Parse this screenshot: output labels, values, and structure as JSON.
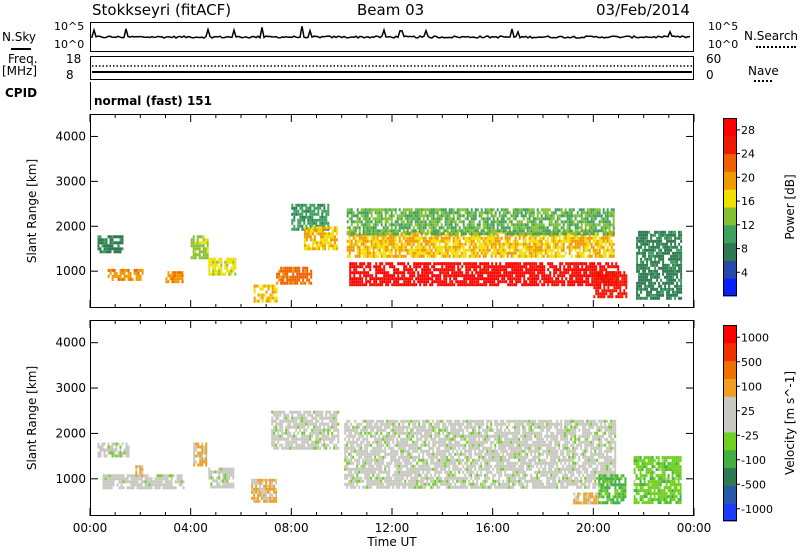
{
  "header": {
    "station": "Stokkseyri (fitACF)",
    "beam": "Beam 03",
    "date": "03/Feb/2014"
  },
  "strip": {
    "nsky_label": "N.Sky",
    "nsky_ticks": [
      "10^5",
      "10^0"
    ],
    "nsearch_label": "N.Search",
    "nsearch_ticks": [
      "10^5",
      "10^0"
    ],
    "freq_label": "Freq.",
    "freq_unit": "[MHz]",
    "freq_ticks": [
      "18",
      "8"
    ],
    "nave_label": "Nave",
    "nave_ticks": [
      "60",
      "0"
    ],
    "cpid_label": "CPID",
    "cpid_value": "normal (fast) 151"
  },
  "colors": {
    "power": [
      "#0a1eff",
      "#2848a8",
      "#2f7a52",
      "#3fa060",
      "#84c034",
      "#f0e000",
      "#f09a00",
      "#f06000",
      "#f01800",
      "#ff0000"
    ],
    "velocity": [
      "#1e3cff",
      "#2858a8",
      "#2f7a52",
      "#40b040",
      "#70d020",
      "#c8c8c0",
      "#c8c8c0",
      "#f0a020",
      "#f07000",
      "#f03000",
      "#ff0000"
    ]
  },
  "chart_data": [
    {
      "type": "heatmap",
      "name": "power",
      "ylabel": "Slant Range [km]",
      "yticks": [
        1000,
        2000,
        3000,
        4000
      ],
      "ylim": [
        180,
        4500
      ],
      "xlim": [
        0,
        24
      ],
      "colorbar_label": "Power [dB]",
      "colorbar_ticks": [
        "4",
        "8",
        "12",
        "16",
        "20",
        "24",
        "28"
      ],
      "colorbar_range": [
        0,
        30
      ],
      "regions": [
        {
          "x": [
            0.3,
            1.3
          ],
          "r": [
            1450,
            1800
          ],
          "v": 8
        },
        {
          "x": [
            0.7,
            2.1
          ],
          "r": [
            800,
            1050
          ],
          "v": 20
        },
        {
          "x": [
            3.0,
            3.7
          ],
          "r": [
            750,
            1000
          ],
          "v": 20
        },
        {
          "x": [
            4.0,
            4.7
          ],
          "r": [
            1300,
            1800
          ],
          "v": 14
        },
        {
          "x": [
            4.7,
            5.8
          ],
          "r": [
            900,
            1300
          ],
          "v": 16
        },
        {
          "x": [
            6.5,
            7.4
          ],
          "r": [
            350,
            700
          ],
          "v": 18
        },
        {
          "x": [
            7.4,
            8.8
          ],
          "r": [
            700,
            1100
          ],
          "v": 22
        },
        {
          "x": [
            8.0,
            9.5
          ],
          "r": [
            1900,
            2500
          ],
          "v": 10
        },
        {
          "x": [
            8.5,
            9.8
          ],
          "r": [
            1500,
            2000
          ],
          "v": 18
        },
        {
          "x": [
            10.2,
            20.8
          ],
          "r": [
            1300,
            1900
          ],
          "v": 18
        },
        {
          "x": [
            10.2,
            20.8
          ],
          "r": [
            1800,
            2400
          ],
          "v": 12
        },
        {
          "x": [
            10.3,
            21.0
          ],
          "r": [
            700,
            1200
          ],
          "v": 28
        },
        {
          "x": [
            20.0,
            21.3
          ],
          "r": [
            400,
            1000
          ],
          "v": 26
        },
        {
          "x": [
            21.7,
            23.5
          ],
          "r": [
            400,
            1900
          ],
          "v": 8
        }
      ]
    },
    {
      "type": "heatmap",
      "name": "velocity",
      "ylabel": "Slant Range [km]",
      "yticks": [
        1000,
        2000,
        3000,
        4000
      ],
      "ylim": [
        180,
        4500
      ],
      "xlim": [
        0,
        24
      ],
      "xlabel": "Time UT",
      "xticks": [
        "00:00",
        "04:00",
        "08:00",
        "12:00",
        "16:00",
        "20:00",
        "00:00"
      ],
      "colorbar_label": "Velocity [m s^-1]",
      "colorbar_ticks": [
        "1000",
        "500",
        "100",
        "25",
        "-25",
        "-100",
        "-500",
        "-1000"
      ],
      "colorbar_range": [
        -1000,
        1000
      ],
      "regions": [
        {
          "x": [
            0.3,
            1.5
          ],
          "r": [
            1500,
            1800
          ],
          "v": 0
        },
        {
          "x": [
            0.5,
            3.7
          ],
          "r": [
            800,
            1100
          ],
          "v": 0
        },
        {
          "x": [
            1.8,
            2.1
          ],
          "r": [
            1100,
            1300
          ],
          "v": 300
        },
        {
          "x": [
            4.1,
            4.6
          ],
          "r": [
            1300,
            1800
          ],
          "v": 300
        },
        {
          "x": [
            4.7,
            5.7
          ],
          "r": [
            850,
            1250
          ],
          "v": 0
        },
        {
          "x": [
            6.4,
            7.4
          ],
          "r": [
            500,
            1000
          ],
          "v": 300
        },
        {
          "x": [
            7.2,
            9.9
          ],
          "r": [
            1700,
            2500
          ],
          "v": 0
        },
        {
          "x": [
            10.1,
            20.9
          ],
          "r": [
            800,
            2300
          ],
          "v": 0
        },
        {
          "x": [
            19.2,
            20.2
          ],
          "r": [
            500,
            700
          ],
          "v": 300
        },
        {
          "x": [
            20.2,
            21.3
          ],
          "r": [
            500,
            1100
          ],
          "v": -300
        },
        {
          "x": [
            21.6,
            23.5
          ],
          "r": [
            500,
            1500
          ],
          "v": -200
        }
      ]
    }
  ]
}
